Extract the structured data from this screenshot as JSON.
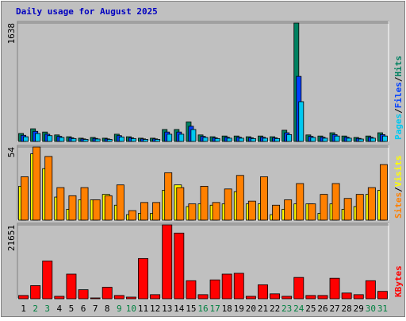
{
  "chart_data": {
    "type": "bar",
    "title": "Daily usage for August 2025",
    "categories": [
      "1",
      "2",
      "3",
      "4",
      "5",
      "6",
      "7",
      "8",
      "9",
      "10",
      "11",
      "12",
      "13",
      "14",
      "15",
      "16",
      "17",
      "18",
      "19",
      "20",
      "21",
      "22",
      "23",
      "24",
      "25",
      "26",
      "27",
      "28",
      "29",
      "30",
      "31"
    ],
    "category_colors": [
      "#000000",
      "#008040",
      "#008040",
      "#000000",
      "#000000",
      "#000000",
      "#000000",
      "#000000",
      "#008040",
      "#008040",
      "#000000",
      "#000000",
      "#000000",
      "#000000",
      "#000000",
      "#008040",
      "#008040",
      "#000000",
      "#000000",
      "#000000",
      "#000000",
      "#000000",
      "#008040",
      "#008040",
      "#000000",
      "#000000",
      "#000000",
      "#000000",
      "#000000",
      "#008040",
      "#008040"
    ],
    "legend_separator": "/",
    "panels": [
      {
        "ylim": [
          0,
          1638
        ],
        "yticks": [
          1638
        ],
        "series": [
          {
            "name": "Hits",
            "color": "#008060",
            "values": [
              110,
              175,
              130,
              90,
              65,
              45,
              55,
              45,
              100,
              65,
              45,
              45,
              165,
              165,
              270,
              90,
              65,
              75,
              75,
              65,
              75,
              65,
              155,
              1638,
              90,
              75,
              120,
              75,
              55,
              75,
              120
            ]
          },
          {
            "name": "Files",
            "color": "#0040ff",
            "values": [
              85,
              140,
              100,
              70,
              50,
              35,
              42,
              35,
              80,
              50,
              35,
              35,
              130,
              130,
              210,
              70,
              50,
              58,
              58,
              50,
              58,
              50,
              120,
              900,
              70,
              58,
              95,
              58,
              42,
              58,
              95
            ]
          },
          {
            "name": "Pages",
            "color": "#00c8f0",
            "values": [
              65,
              110,
              80,
              55,
              40,
              28,
              33,
              28,
              62,
              40,
              28,
              28,
              100,
              100,
              165,
              55,
              40,
              45,
              45,
              40,
              45,
              40,
              95,
              550,
              55,
              45,
              75,
              45,
              33,
              45,
              75
            ]
          }
        ]
      },
      {
        "ylim": [
          0,
          54
        ],
        "yticks": [
          54
        ],
        "series": [
          {
            "name": "Visits",
            "color": "#ffff00",
            "values": [
              25,
              49,
              38,
              17,
              8,
              15,
              15,
              19,
              11,
              4,
              5,
              5,
              22,
              26,
              10,
              12,
              11,
              12,
              21,
              12,
              12,
              4,
              8,
              12,
              12,
              5,
              12,
              8,
              10,
              19,
              22
            ]
          },
          {
            "name": "Sites",
            "color": "#ff8000",
            "values": [
              32,
              54,
              47,
              24,
              18,
              24,
              15,
              18,
              26,
              7,
              13,
              13,
              35,
              24,
              12,
              25,
              13,
              23,
              33,
              14,
              32,
              11,
              15,
              27,
              12,
              19,
              27,
              16,
              19,
              24,
              41
            ]
          }
        ]
      },
      {
        "ylim": [
          0,
          21651
        ],
        "yticks": [
          21651
        ],
        "series": [
          {
            "name": "KBytes",
            "color": "#ff0000",
            "values": [
              960,
              3850,
              11070,
              720,
              7220,
              2650,
              240,
              3370,
              960,
              480,
              11790,
              1200,
              21651,
              19250,
              5290,
              1200,
              5530,
              7220,
              7460,
              720,
              4090,
              1440,
              720,
              6250,
              960,
              960,
              6010,
              1680,
              1200,
              5290,
              2170
            ]
          }
        ]
      }
    ]
  }
}
